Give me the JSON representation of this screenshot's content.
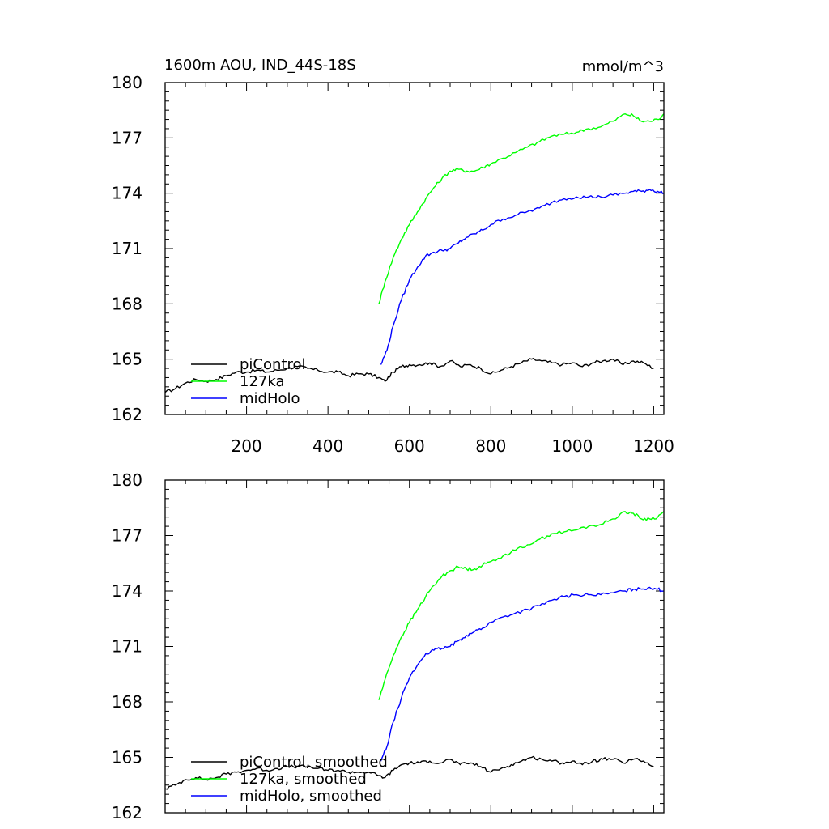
{
  "chart_data": [
    {
      "type": "line",
      "title": "1600m AOU, IND_44S-18S",
      "units": "mmol/m^3",
      "xlim": [
        0,
        1225
      ],
      "ylim": [
        162,
        180
      ],
      "xticks": [
        200,
        400,
        600,
        800,
        1000,
        1200
      ],
      "xtick_labels": [
        "200",
        "400",
        "600",
        "800",
        "1000",
        "1200"
      ],
      "yticks": [
        162,
        165,
        168,
        171,
        174,
        177,
        180
      ],
      "ytick_labels": [
        "162",
        "165",
        "168",
        "171",
        "174",
        "177",
        "180"
      ],
      "grid": false,
      "legend_position": "bottom-left",
      "series": [
        {
          "name": "piControl",
          "color": "#000000",
          "x": [
            0,
            25,
            50,
            75,
            100,
            125,
            150,
            175,
            200,
            225,
            250,
            275,
            300,
            325,
            350,
            375,
            400,
            425,
            450,
            475,
            500,
            525,
            540,
            560,
            580,
            600,
            625,
            650,
            675,
            700,
            725,
            750,
            775,
            800,
            825,
            850,
            875,
            900,
            925,
            950,
            975,
            1000,
            1025,
            1050,
            1075,
            1100,
            1125,
            1150,
            1175,
            1200
          ],
          "y": [
            163.2,
            163.4,
            163.7,
            163.9,
            163.8,
            163.9,
            164.1,
            164.3,
            164.3,
            164.4,
            164.3,
            164.4,
            164.5,
            164.6,
            164.5,
            164.4,
            164.3,
            164.3,
            164.1,
            164.2,
            164.2,
            164.0,
            163.8,
            164.3,
            164.6,
            164.7,
            164.7,
            164.8,
            164.6,
            164.9,
            164.6,
            164.7,
            164.5,
            164.2,
            164.4,
            164.6,
            164.8,
            165.0,
            164.9,
            164.8,
            164.7,
            164.8,
            164.6,
            164.8,
            164.9,
            165.0,
            164.7,
            164.9,
            164.8,
            164.5
          ]
        },
        {
          "name": "127ka",
          "color": "#00ff00",
          "x": [
            525,
            540,
            560,
            580,
            600,
            620,
            640,
            660,
            680,
            700,
            720,
            740,
            760,
            780,
            800,
            830,
            860,
            890,
            920,
            950,
            980,
            1010,
            1040,
            1070,
            1100,
            1130,
            1150,
            1170,
            1190,
            1210,
            1225
          ],
          "y": [
            168.0,
            169.2,
            170.5,
            171.5,
            172.3,
            173.0,
            173.7,
            174.3,
            174.8,
            175.2,
            175.3,
            175.2,
            175.2,
            175.4,
            175.6,
            175.9,
            176.2,
            176.5,
            176.8,
            177.1,
            177.2,
            177.3,
            177.5,
            177.6,
            177.9,
            178.3,
            178.2,
            177.9,
            177.9,
            178.0,
            178.3
          ]
        },
        {
          "name": "midHolo",
          "color": "#0000ff",
          "x": [
            530,
            545,
            560,
            580,
            600,
            620,
            640,
            660,
            680,
            700,
            720,
            740,
            760,
            780,
            800,
            830,
            860,
            890,
            920,
            950,
            980,
            1010,
            1040,
            1070,
            1100,
            1130,
            1150,
            1170,
            1190,
            1210,
            1225
          ],
          "y": [
            164.7,
            165.5,
            166.8,
            168.2,
            169.3,
            170.0,
            170.6,
            170.8,
            170.9,
            171.0,
            171.3,
            171.6,
            171.8,
            172.0,
            172.3,
            172.6,
            172.8,
            173.0,
            173.2,
            173.5,
            173.7,
            173.8,
            173.8,
            173.8,
            173.9,
            174.0,
            174.1,
            174.1,
            174.2,
            174.1,
            174.0
          ]
        }
      ]
    },
    {
      "type": "line",
      "title": "",
      "units": "",
      "xlim": [
        0,
        1225
      ],
      "ylim": [
        162,
        180
      ],
      "xticks": [
        200,
        400,
        600,
        800,
        1000,
        1200
      ],
      "yticks": [
        162,
        165,
        168,
        171,
        174,
        177,
        180
      ],
      "ytick_labels": [
        "162",
        "165",
        "168",
        "171",
        "174",
        "177",
        "180"
      ],
      "grid": false,
      "legend_position": "bottom-left",
      "series": [
        {
          "name": "piControl, smoothed",
          "color": "#000000",
          "x": [
            0,
            25,
            50,
            75,
            100,
            125,
            150,
            175,
            200,
            225,
            250,
            275,
            300,
            325,
            350,
            375,
            400,
            425,
            450,
            475,
            500,
            525,
            540,
            560,
            580,
            600,
            625,
            650,
            675,
            700,
            725,
            750,
            775,
            800,
            825,
            850,
            875,
            900,
            925,
            950,
            975,
            1000,
            1025,
            1050,
            1075,
            1100,
            1125,
            1150,
            1175,
            1200
          ],
          "y": [
            163.3,
            163.5,
            163.8,
            163.9,
            163.8,
            163.9,
            164.1,
            164.2,
            164.3,
            164.4,
            164.3,
            164.4,
            164.5,
            164.5,
            164.5,
            164.4,
            164.3,
            164.3,
            164.2,
            164.2,
            164.2,
            164.0,
            163.9,
            164.3,
            164.6,
            164.7,
            164.7,
            164.8,
            164.7,
            164.9,
            164.6,
            164.7,
            164.5,
            164.2,
            164.4,
            164.6,
            164.8,
            165.0,
            164.9,
            164.8,
            164.7,
            164.8,
            164.6,
            164.8,
            164.9,
            164.9,
            164.7,
            164.9,
            164.8,
            164.5
          ]
        },
        {
          "name": "127ka, smoothed",
          "color": "#00ff00",
          "x": [
            525,
            540,
            560,
            580,
            600,
            620,
            640,
            660,
            680,
            700,
            720,
            740,
            760,
            780,
            800,
            830,
            860,
            890,
            920,
            950,
            980,
            1010,
            1040,
            1070,
            1100,
            1130,
            1150,
            1170,
            1190,
            1210,
            1225
          ],
          "y": [
            168.1,
            169.2,
            170.5,
            171.5,
            172.3,
            173.0,
            173.7,
            174.3,
            174.8,
            175.1,
            175.3,
            175.2,
            175.2,
            175.4,
            175.6,
            175.9,
            176.2,
            176.5,
            176.8,
            177.1,
            177.2,
            177.3,
            177.5,
            177.6,
            177.9,
            178.3,
            178.2,
            177.9,
            177.9,
            178.0,
            178.3
          ]
        },
        {
          "name": "midHolo, smoothed",
          "color": "#0000ff",
          "x": [
            530,
            545,
            560,
            580,
            600,
            620,
            640,
            660,
            680,
            700,
            720,
            740,
            760,
            780,
            800,
            830,
            860,
            890,
            920,
            950,
            980,
            1010,
            1040,
            1070,
            1100,
            1130,
            1150,
            1170,
            1190,
            1210,
            1225
          ],
          "y": [
            164.8,
            165.6,
            166.9,
            168.2,
            169.3,
            170.0,
            170.6,
            170.8,
            170.9,
            171.0,
            171.3,
            171.6,
            171.8,
            172.0,
            172.3,
            172.6,
            172.8,
            173.0,
            173.2,
            173.5,
            173.7,
            173.8,
            173.8,
            173.8,
            173.9,
            174.0,
            174.1,
            174.1,
            174.2,
            174.1,
            174.0
          ]
        }
      ]
    }
  ]
}
